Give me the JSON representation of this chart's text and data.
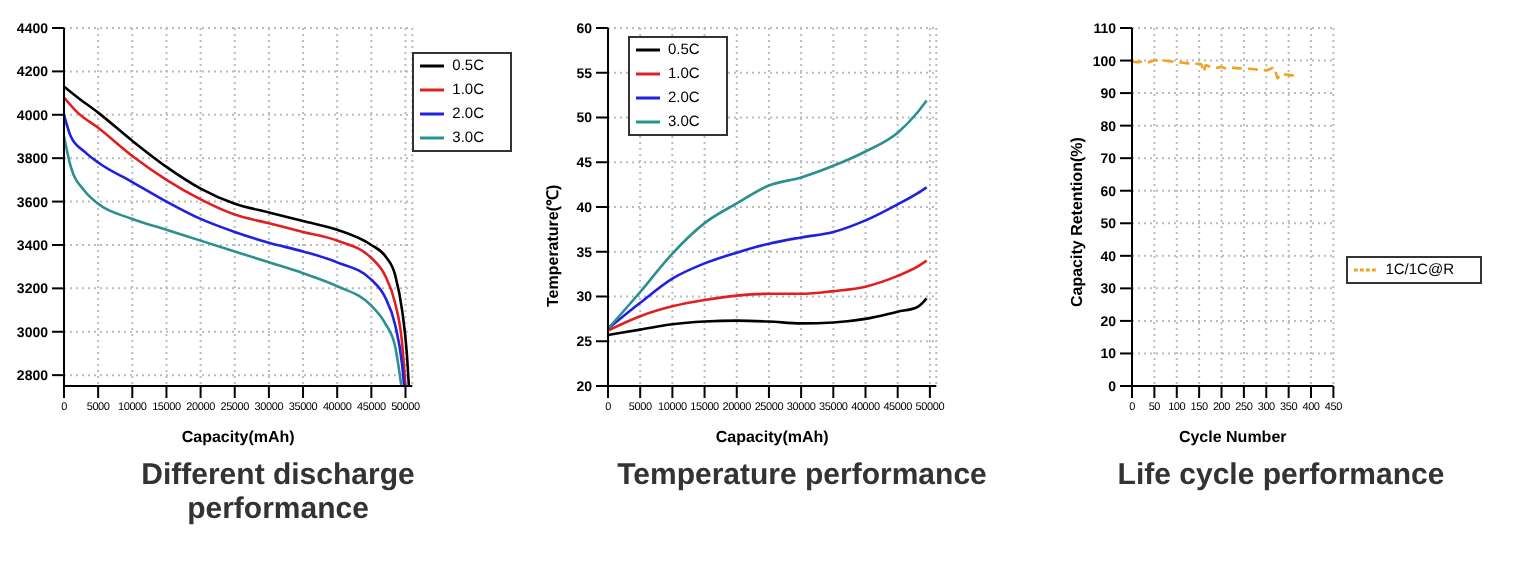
{
  "chart_data": [
    {
      "type": "line",
      "title": "Different discharge performance",
      "xlabel": "Capacity(mAh)",
      "xlim": [
        0,
        51000
      ],
      "xticks": [
        0,
        5000,
        10000,
        15000,
        20000,
        25000,
        30000,
        35000,
        40000,
        45000,
        50000
      ],
      "ylim": [
        2750,
        4400
      ],
      "yticks": [
        2800,
        3000,
        3200,
        3400,
        3600,
        3800,
        4000,
        4200,
        4400
      ],
      "grid": true,
      "legend": "top right",
      "marker": "none",
      "line_style": "solid",
      "series": [
        {
          "name": "0.5C",
          "color": "#000000",
          "x": [
            0,
            2000,
            5000,
            10000,
            15000,
            20000,
            25000,
            30000,
            35000,
            40000,
            45000,
            47000,
            48500,
            49500,
            50200,
            50500
          ],
          "values": [
            4130,
            4080,
            4010,
            3880,
            3760,
            3660,
            3590,
            3550,
            3510,
            3470,
            3400,
            3350,
            3260,
            3100,
            2900,
            2750
          ]
        },
        {
          "name": "1.0C",
          "color": "#e02020",
          "x": [
            0,
            2000,
            5000,
            10000,
            15000,
            20000,
            25000,
            30000,
            35000,
            40000,
            45000,
            47000,
            48500,
            49500,
            50000
          ],
          "values": [
            4080,
            4010,
            3940,
            3810,
            3700,
            3610,
            3540,
            3500,
            3460,
            3420,
            3340,
            3260,
            3130,
            2950,
            2750
          ]
        },
        {
          "name": "2.0C",
          "color": "#2020e0",
          "x": [
            0,
            1000,
            3000,
            5000,
            10000,
            15000,
            20000,
            25000,
            30000,
            35000,
            40000,
            45000,
            47000,
            48500,
            49500,
            49800
          ],
          "values": [
            4000,
            3900,
            3830,
            3780,
            3690,
            3600,
            3520,
            3460,
            3410,
            3370,
            3320,
            3240,
            3160,
            3030,
            2850,
            2750
          ]
        },
        {
          "name": "3.0C",
          "color": "#2a9090",
          "x": [
            0,
            1000,
            3000,
            5000,
            10000,
            15000,
            20000,
            25000,
            30000,
            35000,
            40000,
            45000,
            47000,
            48500,
            49400
          ],
          "values": [
            3900,
            3760,
            3650,
            3590,
            3520,
            3470,
            3420,
            3370,
            3320,
            3270,
            3210,
            3120,
            3040,
            2930,
            2750
          ]
        }
      ]
    },
    {
      "type": "line",
      "title": "Temperature performance",
      "xlabel": "Capacity(mAh)",
      "ylabel": "Temperature(℃)",
      "xlim": [
        0,
        51000
      ],
      "xticks": [
        0,
        5000,
        10000,
        15000,
        20000,
        25000,
        30000,
        35000,
        40000,
        45000,
        50000
      ],
      "ylim": [
        20,
        60
      ],
      "yticks": [
        20,
        25,
        30,
        35,
        40,
        45,
        50,
        55,
        60
      ],
      "grid": true,
      "legend": "top left",
      "marker": "none",
      "line_style": "solid",
      "series": [
        {
          "name": "0.5C",
          "color": "#000000",
          "x": [
            0,
            5000,
            10000,
            15000,
            20000,
            25000,
            30000,
            35000,
            40000,
            45000,
            48000,
            49500
          ],
          "values": [
            25.7,
            26.3,
            26.9,
            27.2,
            27.3,
            27.2,
            27.0,
            27.1,
            27.5,
            28.3,
            28.8,
            29.8
          ]
        },
        {
          "name": "1.0C",
          "color": "#e02020",
          "x": [
            0,
            5000,
            10000,
            15000,
            20000,
            25000,
            30000,
            35000,
            40000,
            45000,
            48000,
            49500
          ],
          "values": [
            26.2,
            27.8,
            28.9,
            29.6,
            30.1,
            30.3,
            30.3,
            30.6,
            31.1,
            32.3,
            33.3,
            34.0
          ]
        },
        {
          "name": "2.0C",
          "color": "#2020e0",
          "x": [
            0,
            5000,
            10000,
            15000,
            20000,
            25000,
            30000,
            35000,
            40000,
            45000,
            48000,
            49500
          ],
          "values": [
            26.4,
            29.3,
            32.0,
            33.7,
            34.9,
            35.9,
            36.6,
            37.2,
            38.5,
            40.3,
            41.5,
            42.2
          ]
        },
        {
          "name": "3.0C",
          "color": "#2a9090",
          "x": [
            0,
            5000,
            10000,
            15000,
            20000,
            25000,
            30000,
            35000,
            40000,
            45000,
            48000,
            49500
          ],
          "values": [
            26.4,
            30.5,
            34.8,
            38.2,
            40.4,
            42.4,
            43.3,
            44.6,
            46.2,
            48.3,
            50.5,
            51.9
          ]
        }
      ]
    },
    {
      "type": "line",
      "title": "Life cycle performance",
      "xlabel": "Cycle Number",
      "ylabel": "Capacity Retention(%)",
      "xlim": [
        0,
        450
      ],
      "xticks": [
        0,
        50,
        100,
        150,
        200,
        250,
        300,
        350,
        400,
        450
      ],
      "ylim": [
        0,
        110
      ],
      "yticks": [
        0,
        10,
        20,
        30,
        40,
        50,
        60,
        70,
        80,
        90,
        100,
        110
      ],
      "grid": true,
      "legend": "right",
      "line_style": "dashed",
      "series": [
        {
          "name": "1C/1C@R",
          "color": "#f5a020",
          "x": [
            0,
            10,
            20,
            30,
            40,
            50,
            60,
            70,
            80,
            90,
            100,
            110,
            120,
            130,
            140,
            150,
            155,
            160,
            165,
            170,
            180,
            190,
            200,
            210,
            220,
            230,
            240,
            250,
            260,
            270,
            280,
            290,
            300,
            310,
            318,
            322,
            325,
            330,
            335,
            340,
            350,
            360,
            370
          ],
          "values": [
            99.7,
            99.5,
            99.6,
            99.3,
            99.6,
            100.0,
            100.2,
            100.0,
            99.9,
            99.7,
            99.5,
            99.4,
            99.2,
            99.1,
            99.0,
            99.0,
            98.8,
            96.5,
            98.6,
            98.3,
            98.0,
            97.8,
            98.0,
            97.6,
            97.8,
            97.7,
            97.6,
            97.5,
            97.5,
            97.4,
            97.2,
            97.0,
            97.0,
            97.5,
            98.0,
            96.0,
            94.5,
            95.5,
            96.0,
            95.8,
            95.6,
            95.4,
            95.5
          ]
        }
      ]
    }
  ]
}
